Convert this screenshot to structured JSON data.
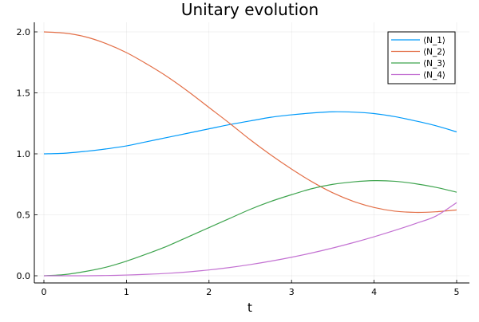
{
  "chart_data": {
    "type": "line",
    "title": "Unitary evolution",
    "xlabel": "t",
    "ylabel": "",
    "xlim": [
      0,
      5
    ],
    "ylim": [
      0,
      2
    ],
    "x_ticks": [
      0,
      1,
      2,
      3,
      4,
      5
    ],
    "x_tick_labels": [
      "0",
      "1",
      "2",
      "3",
      "4",
      "5"
    ],
    "y_ticks": [
      0,
      0.5,
      1,
      1.5,
      2
    ],
    "y_tick_labels": [
      "0.0",
      "0.5",
      "1.0",
      "1.5",
      "2.0"
    ],
    "grid": true,
    "legend_position": "top-right",
    "x": [
      0,
      0.25,
      0.5,
      0.75,
      1,
      1.25,
      1.5,
      1.75,
      2,
      2.25,
      2.5,
      2.75,
      3,
      3.25,
      3.5,
      3.75,
      4,
      4.25,
      4.5,
      4.75,
      5
    ],
    "series": [
      {
        "name": "⟨N_1⟩",
        "color": "#009AFA",
        "values": [
          1.0,
          1.005,
          1.02,
          1.04,
          1.065,
          1.1,
          1.135,
          1.17,
          1.205,
          1.24,
          1.27,
          1.3,
          1.32,
          1.335,
          1.345,
          1.342,
          1.33,
          1.305,
          1.27,
          1.23,
          1.18
        ]
      },
      {
        "name": "⟨N_2⟩",
        "color": "#E36F47",
        "values": [
          2.0,
          1.99,
          1.96,
          1.905,
          1.83,
          1.735,
          1.63,
          1.51,
          1.38,
          1.25,
          1.115,
          0.99,
          0.875,
          0.77,
          0.68,
          0.61,
          0.56,
          0.53,
          0.52,
          0.525,
          0.54
        ]
      },
      {
        "name": "⟨N_3⟩",
        "color": "#3EA44E",
        "values": [
          0.0,
          0.01,
          0.035,
          0.07,
          0.12,
          0.18,
          0.245,
          0.32,
          0.395,
          0.47,
          0.545,
          0.61,
          0.665,
          0.715,
          0.75,
          0.77,
          0.78,
          0.775,
          0.755,
          0.725,
          0.685
        ]
      },
      {
        "name": "⟨N_4⟩",
        "color": "#C371D2",
        "values": [
          0.0,
          0.0,
          0.0,
          0.002,
          0.006,
          0.012,
          0.02,
          0.032,
          0.048,
          0.068,
          0.092,
          0.12,
          0.152,
          0.188,
          0.228,
          0.272,
          0.32,
          0.372,
          0.428,
          0.49,
          0.6
        ]
      }
    ]
  }
}
